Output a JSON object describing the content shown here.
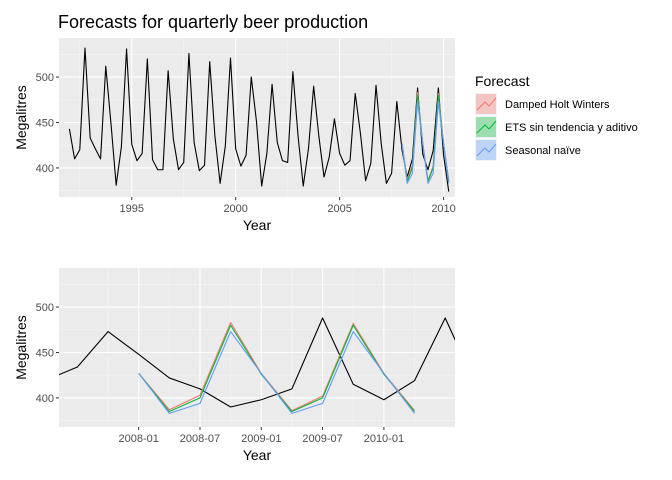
{
  "page": {
    "title": "Forecasts for quarterly beer production"
  },
  "legend": {
    "title": "Forecast",
    "position": "right",
    "entries": [
      {
        "name": "Damped Holt Winters",
        "color": "#F8766D"
      },
      {
        "name": "ETS sin tendencia y aditivo",
        "color": "#00BA38"
      },
      {
        "name": "Seasonal naïve",
        "color": "#619CFF"
      }
    ]
  },
  "chart_data": [
    {
      "type": "line",
      "xlabel": "Year",
      "ylabel": "Megalitres",
      "xlim": [
        1991.5,
        2010.55
      ],
      "ylim": [
        368,
        543
      ],
      "xticks": [
        1995,
        2000,
        2005,
        2010
      ],
      "xtick_labels": [
        "1995",
        "2000",
        "2005",
        "2010"
      ],
      "yticks": [
        400,
        450,
        500
      ],
      "ytick_labels": [
        "400",
        "450",
        "500"
      ],
      "grid": true,
      "series": [
        {
          "name": "",
          "color": "#000000",
          "start": 1992.0,
          "step": 0.25,
          "values": [
            443,
            410,
            420,
            532,
            433,
            421,
            410,
            512,
            449,
            381,
            423,
            531,
            426,
            408,
            416,
            520,
            409,
            398,
            398,
            507,
            432,
            398,
            406,
            526,
            428,
            397,
            403,
            517,
            435,
            383,
            424,
            521,
            421,
            402,
            414,
            500,
            451,
            380,
            416,
            492,
            428,
            408,
            406,
            506,
            435,
            380,
            421,
            490,
            435,
            390,
            412,
            454,
            416,
            403,
            408,
            482,
            438,
            386,
            405,
            491,
            427,
            383,
            394,
            473,
            420,
            390,
            410,
            488,
            415,
            398,
            419,
            488,
            414,
            374
          ]
        },
        {
          "name": "Damped Holt Winters",
          "color": "#F8766D",
          "start": 2008.0,
          "step": 0.25,
          "values": [
            427,
            387,
            403,
            483,
            427,
            386,
            402,
            482,
            427,
            386
          ]
        },
        {
          "name": "ETS sin tendencia y aditivo",
          "color": "#00BA38",
          "start": 2008.0,
          "step": 0.25,
          "values": [
            427,
            385,
            400,
            480,
            426,
            385,
            400,
            480,
            426,
            385
          ]
        },
        {
          "name": "Seasonal naïve",
          "color": "#619CFF",
          "start": 2008.0,
          "step": 0.25,
          "values": [
            427,
            383,
            394,
            473,
            427,
            383,
            394,
            473,
            427,
            383
          ]
        }
      ]
    },
    {
      "type": "line",
      "xlabel": "Year",
      "ylabel": "Megalitres",
      "xlim": [
        2007.35,
        2010.58
      ],
      "ylim": [
        368,
        543
      ],
      "xticks": [
        2008.0,
        2008.5,
        2009.0,
        2009.5,
        2010.0
      ],
      "xtick_labels": [
        "2008-01",
        "2008-07",
        "2009-01",
        "2009-07",
        "2010-01"
      ],
      "yticks": [
        400,
        450,
        500
      ],
      "ytick_labels": [
        "400",
        "450",
        "500"
      ],
      "grid": true,
      "series": [
        {
          "name": "",
          "color": "#000000",
          "start": 2007.25,
          "step": 0.25,
          "values": [
            420,
            434,
            473,
            448,
            422,
            410,
            390,
            398,
            410,
            488,
            415,
            398,
            419,
            488,
            414,
            374
          ]
        },
        {
          "name": "Damped Holt Winters",
          "color": "#F8766D",
          "start": 2008.0,
          "step": 0.25,
          "values": [
            427,
            387,
            403,
            483,
            427,
            386,
            402,
            482,
            427,
            386
          ]
        },
        {
          "name": "ETS sin tendencia y aditivo",
          "color": "#00BA38",
          "start": 2008.0,
          "step": 0.25,
          "values": [
            427,
            385,
            400,
            480,
            426,
            385,
            400,
            480,
            426,
            385
          ]
        },
        {
          "name": "Seasonal naïve",
          "color": "#619CFF",
          "start": 2008.0,
          "step": 0.25,
          "values": [
            427,
            383,
            394,
            473,
            427,
            383,
            394,
            473,
            427,
            383
          ]
        }
      ]
    }
  ]
}
